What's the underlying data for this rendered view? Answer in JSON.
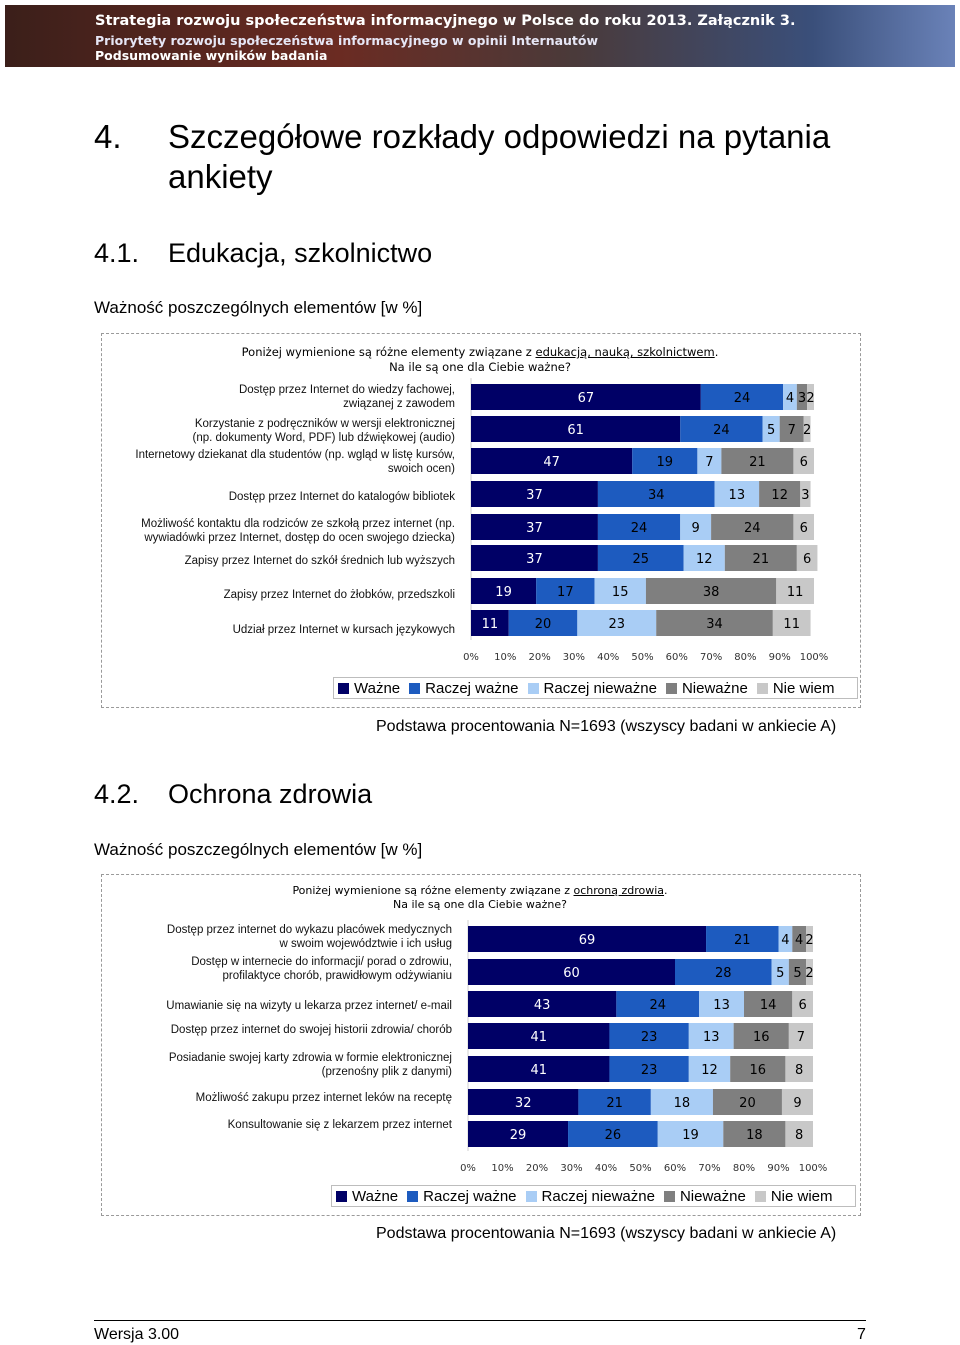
{
  "header": {
    "line1": "Strategia rozwoju społeczeństwa informacyjnego w Polsce do roku 2013. Załącznik 3.",
    "line2": "Priorytety rozwoju społeczeństwa informacyjnego w opinii Internautów",
    "line3": "Podsumowanie wyników badania"
  },
  "section": {
    "number": "4.",
    "title_l1": "Szczegółowe rozkłady odpowiedzi na pytania",
    "title_l2": "ankiety"
  },
  "sub1": {
    "number": "4.1.",
    "title": "Edukacja, szkolnictwo",
    "caption": "Ważność poszczególnych elementów [w %]",
    "q_l1a": "Poniżej wymienione są różne elementy związane z ",
    "q_l1b": "edukacją, nauką, szkolnictwem",
    "q_l1c": ".",
    "q_l2": "Na ile są one dla Ciebie ważne?",
    "footnote": "Podstawa procentowania N=1693 (wszyscy badani w ankiecie A)"
  },
  "sub2": {
    "number": "4.2.",
    "title": "Ochrona zdrowia",
    "caption": "Ważność poszczególnych elementów [w %]",
    "q_l1a": "Poniżej wymienione są różne elementy związane z ",
    "q_l1b": "ochroną zdrowia",
    "q_l1c": ".",
    "q_l2": "Na ile są one dla Ciebie ważne?",
    "footnote": "Podstawa procentowania N=1693 (wszyscy badani w ankiecie A)"
  },
  "legend": [
    "Ważne",
    "Raczej ważne",
    "Raczej nieważne",
    "Nieważne",
    "Nie wiem"
  ],
  "colors": [
    "#000066",
    "#1d5bbf",
    "#a9cdf5",
    "#7f7f7f",
    "#c8c8c8"
  ],
  "label_colors": [
    "#ffffff",
    "#000000",
    "#000000",
    "#000000",
    "#000000"
  ],
  "ticks": [
    "0%",
    "10%",
    "20%",
    "30%",
    "40%",
    "50%",
    "60%",
    "70%",
    "80%",
    "90%",
    "100%"
  ],
  "chart_data": [
    {
      "type": "bar",
      "stacked": true,
      "orientation": "horizontal",
      "xlim": [
        0,
        100
      ],
      "categories": [
        [
          "Dostęp przez Internet do wiedzy fachowej,",
          "związanej z zawodem"
        ],
        [
          "Korzystanie z podręczników w wersji elektronicznej",
          "(np. dokumenty Word, PDF) lub dźwiękowej (audio)"
        ],
        [
          "Internetowy dziekanat dla studentów (np. wgląd w listę kursów,",
          "swoich ocen)"
        ],
        [
          "Dostęp przez Internet do katalogów bibliotek"
        ],
        [
          "Możliwość kontaktu dla rodziców ze szkołą przez internet (np.",
          "wywiadówki przez Internet, dostęp do ocen swojego dziecka)"
        ],
        [
          "Zapisy przez Internet do szkół średnich lub wyższych"
        ],
        [
          "Zapisy przez Internet do żłobków, przedszkoli"
        ],
        [
          "Udział przez Internet w kursach językowych"
        ]
      ],
      "series": [
        {
          "name": "Ważne",
          "values": [
            67,
            61,
            47,
            37,
            37,
            37,
            19,
            11
          ]
        },
        {
          "name": "Raczej ważne",
          "values": [
            24,
            24,
            19,
            34,
            24,
            25,
            17,
            20
          ]
        },
        {
          "name": "Raczej nieważne",
          "values": [
            4,
            5,
            7,
            13,
            9,
            12,
            15,
            23
          ]
        },
        {
          "name": "Nieważne",
          "values": [
            3,
            7,
            21,
            12,
            24,
            21,
            38,
            34
          ]
        },
        {
          "name": "Nie wiem",
          "values": [
            2,
            2,
            6,
            3,
            6,
            6,
            11,
            11
          ]
        }
      ]
    },
    {
      "type": "bar",
      "stacked": true,
      "orientation": "horizontal",
      "xlim": [
        0,
        100
      ],
      "categories": [
        [
          "Dostęp przez internet do wykazu placówek medycznych",
          "w swoim województwie i ich usług"
        ],
        [
          "Dostęp w internecie do informacji/ porad o zdrowiu,",
          "profilaktyce chorób, prawidłowym odżywianiu"
        ],
        [
          "Umawianie się na wizyty u lekarza przez internet/ e-mail"
        ],
        [
          "Dostęp przez internet do swojej historii zdrowia/ chorób"
        ],
        [
          "Posiadanie swojej karty zdrowia w formie elektronicznej",
          "(przenośny plik z danymi)"
        ],
        [
          "Możliwość zakupu przez internet leków na receptę"
        ],
        [
          "Konsultowanie się z lekarzem przez internet"
        ]
      ],
      "series": [
        {
          "name": "Ważne",
          "values": [
            69,
            60,
            43,
            41,
            41,
            32,
            29
          ]
        },
        {
          "name": "Raczej ważne",
          "values": [
            21,
            28,
            24,
            23,
            23,
            21,
            26
          ]
        },
        {
          "name": "Raczej nieważne",
          "values": [
            4,
            5,
            13,
            13,
            12,
            18,
            19
          ]
        },
        {
          "name": "Nieważne",
          "values": [
            4,
            5,
            14,
            16,
            16,
            20,
            18
          ]
        },
        {
          "name": "Nie wiem",
          "values": [
            2,
            2,
            6,
            7,
            8,
            9,
            8
          ]
        }
      ]
    }
  ],
  "footer": {
    "version": "Wersja 3.00",
    "page": "7"
  }
}
